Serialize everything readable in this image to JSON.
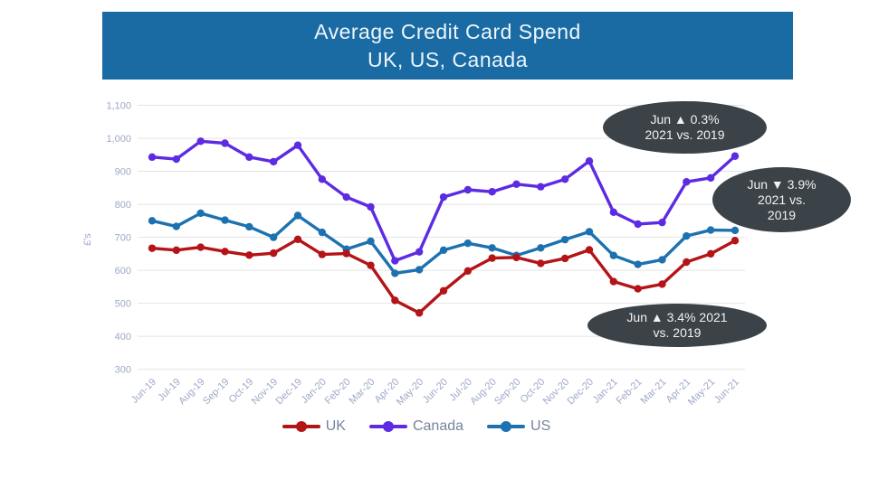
{
  "title": {
    "line1": "Average Credit Card Spend",
    "line2": "UK, US, Canada"
  },
  "colors": {
    "banner": "#1a6ba4",
    "annotation_bg": "#3b4349",
    "axis_text": "#9fa8c8",
    "gridline": "#e4e4e4",
    "legend_text": "#76839f",
    "uk": "#b41418",
    "canada": "#5c2be2",
    "us": "#1c72b0"
  },
  "annotations": [
    {
      "id": "canada-jun",
      "lines": [
        "Jun ▲ 0.3%",
        "2021 vs. 2019"
      ]
    },
    {
      "id": "us-jun",
      "lines": [
        "Jun ▼ 3.9%",
        "2021 vs.",
        "2019"
      ]
    },
    {
      "id": "uk-jun",
      "lines": [
        "Jun ▲ 3.4% 2021",
        "vs. 2019"
      ]
    }
  ],
  "chart_data": {
    "type": "line",
    "title": "Average Credit Card Spend UK, US, Canada",
    "xlabel": "",
    "ylabel": "£'s",
    "ylim": [
      300,
      1100
    ],
    "yticks": [
      1100,
      1000,
      900,
      800,
      700,
      600,
      500,
      400,
      300
    ],
    "ytick_labels": [
      "1,100",
      "1,000",
      "900",
      "800",
      "700",
      "600",
      "500",
      "400",
      "300"
    ],
    "grid": "horizontal",
    "legend_position": "bottom",
    "categories": [
      "Jun-19",
      "Jul-19",
      "Aug-19",
      "Sep-19",
      "Oct-19",
      "Nov-19",
      "Dec-19",
      "Jan-20",
      "Feb-20",
      "Mar-20",
      "Apr-20",
      "May-20",
      "Jun-20",
      "Jul-20",
      "Aug-20",
      "Sep-20",
      "Oct-20",
      "Nov-20",
      "Dec-20",
      "Jan-21",
      "Feb-21",
      "Mar-21",
      "Apr-21",
      "May-21",
      "Jun-21"
    ],
    "series": [
      {
        "name": "UK",
        "color": "#b41418",
        "values": [
          667,
          661,
          670,
          657,
          646,
          652,
          694,
          648,
          651,
          615,
          509,
          471,
          538,
          598,
          637,
          639,
          621,
          636,
          662,
          566,
          544,
          558,
          625,
          650,
          690
        ]
      },
      {
        "name": "Canada",
        "color": "#5c2be2",
        "values": [
          943,
          937,
          991,
          985,
          943,
          929,
          979,
          876,
          822,
          792,
          629,
          656,
          822,
          844,
          838,
          861,
          853,
          876,
          931,
          776,
          740,
          745,
          868,
          880,
          946
        ]
      },
      {
        "name": "US",
        "color": "#1c72b0",
        "values": [
          750,
          733,
          773,
          752,
          732,
          700,
          766,
          715,
          664,
          688,
          591,
          602,
          661,
          682,
          668,
          645,
          668,
          693,
          717,
          645,
          618,
          632,
          704,
          722,
          721
        ]
      }
    ]
  }
}
